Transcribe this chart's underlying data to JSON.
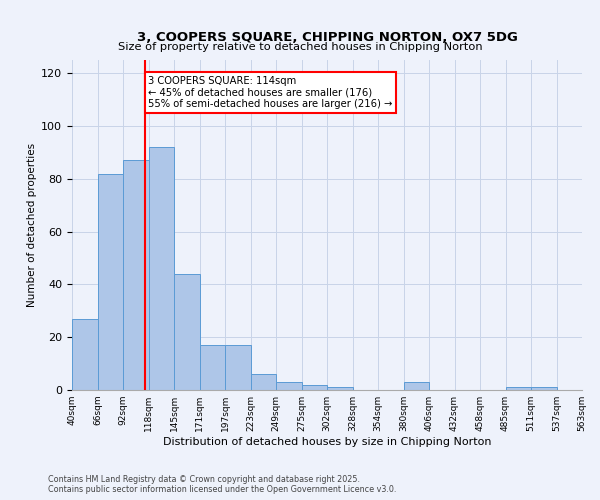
{
  "title_line1": "3, COOPERS SQUARE, CHIPPING NORTON, OX7 5DG",
  "title_line2": "Size of property relative to detached houses in Chipping Norton",
  "xlabel": "Distribution of detached houses by size in Chipping Norton",
  "ylabel": "Number of detached properties",
  "bar_heights": [
    27,
    82,
    87,
    92,
    44,
    17,
    17,
    6,
    3,
    2,
    1,
    0,
    0,
    3,
    0,
    0,
    0,
    1,
    1,
    0
  ],
  "bin_labels": [
    "40sqm",
    "66sqm",
    "92sqm",
    "118sqm",
    "145sqm",
    "171sqm",
    "197sqm",
    "223sqm",
    "249sqm",
    "275sqm",
    "302sqm",
    "328sqm",
    "354sqm",
    "380sqm",
    "406sqm",
    "432sqm",
    "458sqm",
    "485sqm",
    "511sqm",
    "537sqm",
    "563sqm"
  ],
  "bar_color": "#aec6e8",
  "bar_edge_color": "#5b9bd5",
  "vline_color": "red",
  "annotation_text": "3 COOPERS SQUARE: 114sqm\n← 45% of detached houses are smaller (176)\n55% of semi-detached houses are larger (216) →",
  "annotation_box_color": "white",
  "annotation_box_edge": "red",
  "footnote": "Contains HM Land Registry data © Crown copyright and database right 2025.\nContains public sector information licensed under the Open Government Licence v3.0.",
  "ylim": [
    0,
    125
  ],
  "background_color": "#eef2fb",
  "grid_color": "#c8d4e8"
}
